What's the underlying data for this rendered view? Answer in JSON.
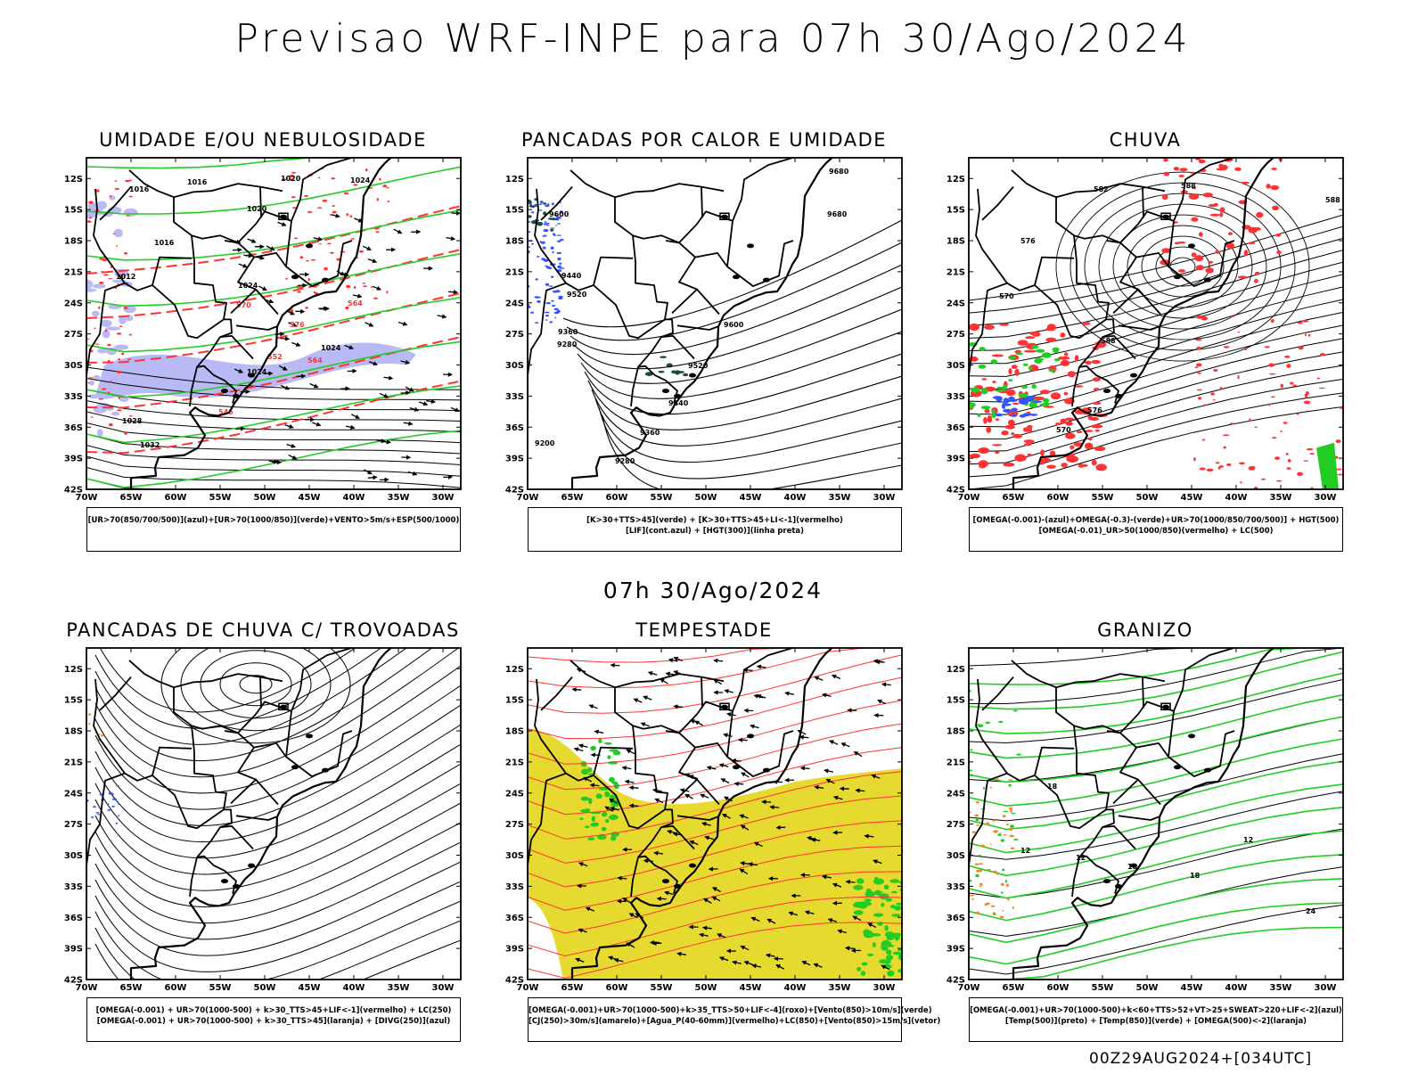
{
  "header": {
    "title": "Previsao WRF-INPE  para 07h 30/Ago/2024"
  },
  "middle": {
    "subtitle": "07h 30/Ago/2024"
  },
  "footer": {
    "run_label": "00Z29AUG2024+[034UTC]"
  },
  "axes": {
    "lat_labels": [
      "12S",
      "15S",
      "18S",
      "21S",
      "24S",
      "27S",
      "30S",
      "33S",
      "36S",
      "39S",
      "42S"
    ],
    "lon_labels": [
      "70W",
      "65W",
      "60W",
      "55W",
      "50W",
      "45W",
      "40W",
      "35W",
      "30W"
    ]
  },
  "panels": [
    {
      "id": "umidade",
      "title": "UMIDADE E/OU NEBULOSIDADE",
      "legend": [
        "[UR>70(850/700/500)](azul)+[UR>70(1000/850)](verde)+VENTO>5m/s+ESP(500/1000)"
      ],
      "contour_labels": [
        "1016",
        "1016",
        "1020",
        "1020",
        "1024",
        "1016",
        "1012",
        "1024",
        "1024",
        "1024",
        "1028",
        "1032",
        "564",
        "570",
        "576",
        "564",
        "552",
        "546"
      ]
    },
    {
      "id": "pancadas-calor",
      "title": "PANCADAS POR CALOR E UMIDADE",
      "legend": [
        "[K>30+TTS>45](verde) + [K>30+TTS>45+LI<-1](vermelho)",
        "[LIF](cont.azul) + [HGT(300)](linha preta)"
      ],
      "contour_labels": [
        "9680",
        "9680",
        "9600",
        "9520",
        "9440",
        "9360",
        "9280",
        "9200",
        "9600",
        "9520",
        "9440",
        "9360",
        "9280"
      ]
    },
    {
      "id": "chuva",
      "title": "CHUVA",
      "legend": [
        "[OMEGA(-0.001)-(azul)+OMEGA(-0.3)-(verde)+UR>70(1000/850/700/500)] + HGT(500)",
        "[OMEGA(-0.01)_UR>50(1000/850)(vermelho) + LC(500)"
      ],
      "contour_labels": [
        "588",
        "588",
        "582",
        "576",
        "570",
        "588",
        "576",
        "570"
      ]
    },
    {
      "id": "pancadas-trovoadas",
      "title": "PANCADAS DE CHUVA C/ TROVOADAS",
      "legend": [
        "[OMEGA(-0.001) + UR>70(1000-500) + k>30_TTS>45+LIF<-1](vermelho) + LC(250)",
        "[OMEGA(-0.001) + UR>70(1000-500) + k>30_TTS>45](laranja) + [DIVG(250)](azul)"
      ],
      "contour_labels": []
    },
    {
      "id": "tempestade",
      "title": "TEMPESTADE",
      "legend": [
        "[OMEGA(-0.001)+UR>70(1000-500)+k>35_TTS>50+LIF<-4](roxo)+[Vento(850)>10m/s](verde)",
        "[CJ(250)>30m/s](amarelo)+[Agua_P(40-60mm)](vermelho)+LC(850)+[Vento(850)>15m/s](vetor)"
      ],
      "contour_labels": []
    },
    {
      "id": "granizo",
      "title": "GRANIZO",
      "legend": [
        "[OMEGA(-0.001)+UR>70(1000-500)+k<60+TTS>52+VT>25+SWEAT>220+LIF<-2](azul)",
        "[Temp(500)](preto) + [Temp(850)](verde) + [OMEGA(500)<-2](laranja)"
      ],
      "contour_labels": [
        "12",
        "12",
        "18",
        "18",
        "12",
        "18",
        "24"
      ]
    }
  ],
  "colors": {
    "red": "#ff3333",
    "green": "#22cc22",
    "blue": "#3355ff",
    "lav": "#b9b9f5",
    "yellow": "#e6d930",
    "orange": "#ee8822",
    "dark": "#000000"
  }
}
